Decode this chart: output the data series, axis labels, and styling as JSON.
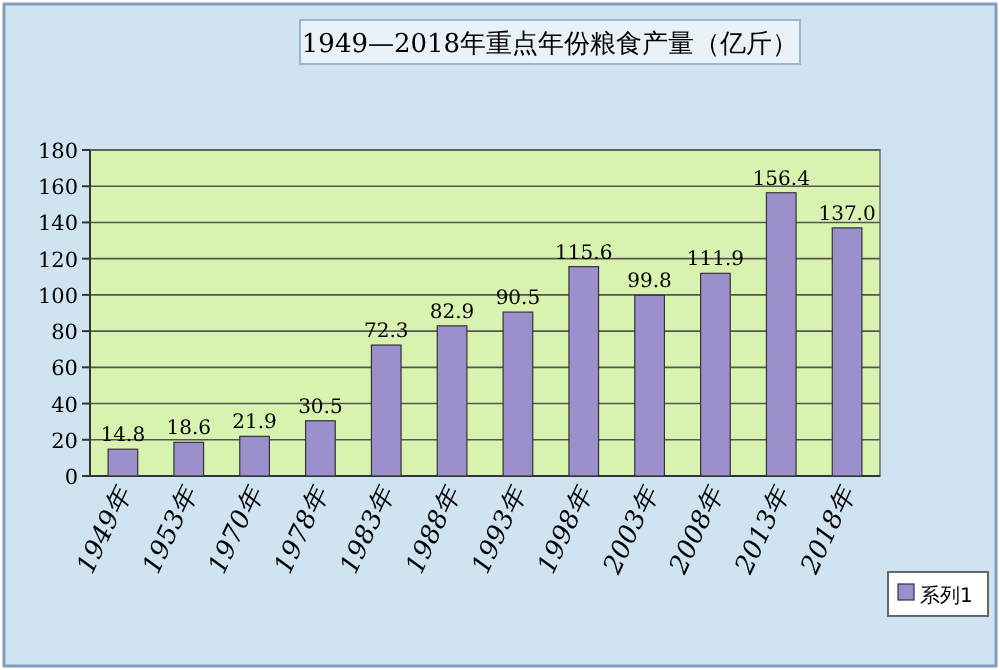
{
  "chart_data": {
    "type": "bar",
    "title": "1949—2018年重点年份粮食产量（亿斤）",
    "categories": [
      "1949年",
      "1953年",
      "1970年",
      "1978年",
      "1983年",
      "1988年",
      "1993年",
      "1998年",
      "2003年",
      "2008年",
      "2013年",
      "2018年"
    ],
    "series": [
      {
        "name": "系列1",
        "color": "#9b8fcc",
        "values": [
          14.8,
          18.6,
          21.9,
          30.5,
          72.3,
          82.9,
          90.5,
          115.6,
          99.8,
          111.9,
          156.4,
          137.0
        ],
        "value_labels": [
          "14.8",
          "18.6",
          "21.9",
          "30.5",
          "72.3",
          "82.9",
          "90.5",
          "115.6",
          "99.8",
          "111.9",
          "156.4",
          "137.0"
        ]
      }
    ],
    "ylim": [
      0,
      180
    ],
    "yticks": [
      0,
      20,
      40,
      60,
      80,
      100,
      120,
      140,
      160,
      180
    ],
    "grid": "y",
    "legend": "bottom right"
  }
}
